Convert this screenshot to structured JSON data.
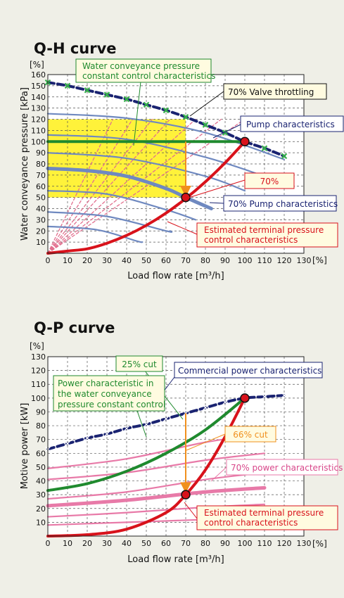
{
  "colors": {
    "background": "#efefe7",
    "plot_background": "#ffffff",
    "yellow_zone": "#fff23a",
    "grid": "#555555",
    "green": "#1f8a2e",
    "red": "#d8121b",
    "navy": "#1a2371",
    "blue_gray": "#6f89c0",
    "pink": "#e87aa8",
    "pink_dashed": "#e2708f",
    "orange": "#f0901e",
    "marker_green": "#35b04a",
    "label_fill": "#fffbe0"
  },
  "chart_data": [
    {
      "type": "line",
      "title": "Q-H curve",
      "unit_label": "[%]",
      "x_unit_label": "[%]",
      "xlabel": "Load flow rate [m³/h]",
      "ylabel": "Water conveyance pressure [kPa]",
      "xlim": [
        0,
        130
      ],
      "ylim": [
        0,
        160
      ],
      "x_ticks": [
        "0",
        "10",
        "20",
        "30",
        "40",
        "50",
        "60",
        "70",
        "80",
        "90",
        "100",
        "110",
        "120",
        "130"
      ],
      "y_ticks": [
        "10",
        "20",
        "30",
        "40",
        "50",
        "60",
        "70",
        "80",
        "90",
        "100",
        "110",
        "120",
        "130",
        "140",
        "150",
        "160"
      ],
      "grid": true,
      "highlight_region": {
        "x": [
          0,
          70
        ],
        "y": [
          50,
          120
        ]
      },
      "series": [
        {
          "name": "Pump characteristics",
          "style": "navy-dashed",
          "points": [
            [
              0,
              153
            ],
            [
              10,
              150
            ],
            [
              20,
              146
            ],
            [
              30,
              142
            ],
            [
              40,
              138
            ],
            [
              50,
              133
            ],
            [
              60,
              128
            ],
            [
              70,
              122
            ],
            [
              80,
              115
            ],
            [
              90,
              108
            ],
            [
              100,
              100
            ],
            [
              110,
              94
            ],
            [
              120,
              87
            ]
          ]
        },
        {
          "name": "Estimated terminal pressure control characteristics",
          "style": "red",
          "points": [
            [
              0,
              0
            ],
            [
              10,
              2
            ],
            [
              20,
              4
            ],
            [
              30,
              9
            ],
            [
              40,
              16
            ],
            [
              50,
              25
            ],
            [
              60,
              36
            ],
            [
              70,
              49
            ],
            [
              80,
              64
            ],
            [
              90,
              81
            ],
            [
              100,
              100
            ]
          ]
        },
        {
          "name": "Water conveyance pressure constant control characteristics",
          "style": "green",
          "points": [
            [
              0,
              100
            ],
            [
              100,
              100
            ]
          ]
        },
        {
          "name": "70% Pump characteristics",
          "style": "blue-thick",
          "points": [
            [
              0,
              76
            ],
            [
              20,
              74
            ],
            [
              40,
              69
            ],
            [
              60,
              58
            ],
            [
              70,
              50
            ],
            [
              83,
              40
            ]
          ]
        },
        {
          "style": "blue",
          "points": [
            [
              0,
              125
            ],
            [
              40,
              121
            ],
            [
              80,
              108
            ],
            [
              120,
              84
            ]
          ]
        },
        {
          "style": "blue",
          "points": [
            [
              0,
              106
            ],
            [
              40,
              102
            ],
            [
              80,
              86
            ],
            [
              110,
              69
            ]
          ]
        },
        {
          "style": "blue",
          "points": [
            [
              0,
              90
            ],
            [
              40,
              85
            ],
            [
              80,
              69
            ],
            [
              100,
              56
            ]
          ]
        },
        {
          "style": "blue",
          "points": [
            [
              0,
              56
            ],
            [
              30,
              53
            ],
            [
              60,
              39
            ],
            [
              75,
              30
            ]
          ]
        },
        {
          "style": "blue",
          "points": [
            [
              0,
              37
            ],
            [
              30,
              33
            ],
            [
              60,
              20
            ],
            [
              62,
              20
            ]
          ]
        },
        {
          "style": "blue",
          "points": [
            [
              0,
              24
            ],
            [
              25,
              21
            ],
            [
              45,
              11
            ],
            [
              48,
              10
            ]
          ]
        },
        {
          "style": "pink-dashed",
          "points": [
            [
              0,
              0
            ],
            [
              33,
              120
            ]
          ]
        },
        {
          "style": "pink-dashed",
          "points": [
            [
              0,
              0
            ],
            [
              43,
              120
            ]
          ]
        },
        {
          "style": "pink-dashed",
          "points": [
            [
              0,
              0
            ],
            [
              53,
              120
            ]
          ]
        },
        {
          "style": "pink-dashed",
          "points": [
            [
              0,
              0
            ],
            [
              62,
              120
            ]
          ]
        },
        {
          "style": "pink-dashed",
          "points": [
            [
              0,
              0
            ],
            [
              75,
              120
            ]
          ]
        },
        {
          "style": "pink-dashed",
          "points": [
            [
              0,
              0
            ],
            [
              88,
              120
            ]
          ]
        },
        {
          "style": "pink-dashed",
          "points": [
            [
              0,
              0
            ],
            [
              100,
              120
            ]
          ]
        }
      ],
      "arrow": {
        "from": [
          70,
          100
        ],
        "to": [
          70,
          53
        ]
      },
      "markers": [
        {
          "label": "",
          "point": [
            100,
            100
          ]
        },
        {
          "label": "",
          "point": [
            70,
            50
          ]
        }
      ],
      "annotations": [
        {
          "text": [
            "Water conveyance pressure",
            "constant control characteristics"
          ],
          "color": "green",
          "anchor": [
            47,
            100
          ]
        },
        {
          "text": [
            "70% Valve throttling"
          ],
          "color": "black",
          "anchor": [
            70,
            122
          ]
        },
        {
          "text": [
            "Pump characteristics"
          ],
          "color": "navy",
          "anchor": [
            100,
            100
          ]
        },
        {
          "text": [
            "70%"
          ],
          "color": "red",
          "anchor": [
            70,
            50
          ]
        },
        {
          "text": [
            "70% Pump characteristics"
          ],
          "color": "navy",
          "anchor": [
            83,
            40
          ]
        },
        {
          "text": [
            "Estimated terminal pressure",
            "control characteristics"
          ],
          "color": "red",
          "anchor": [
            63,
            34
          ]
        }
      ]
    },
    {
      "type": "line",
      "title": "Q-P curve",
      "unit_label": "[%]",
      "x_unit_label": "[%]",
      "xlabel": "Load flow rate [m³/h]",
      "ylabel": "Motive power [kW]",
      "xlim": [
        0,
        130
      ],
      "ylim": [
        0,
        130
      ],
      "x_ticks": [
        "0",
        "10",
        "20",
        "30",
        "40",
        "50",
        "60",
        "70",
        "80",
        "90",
        "100",
        "110",
        "120",
        "130"
      ],
      "y_ticks": [
        "10",
        "20",
        "30",
        "40",
        "50",
        "60",
        "70",
        "80",
        "90",
        "100",
        "110",
        "120",
        "130"
      ],
      "grid": true,
      "series": [
        {
          "name": "Commercial power characteristics",
          "style": "navy-dashed",
          "points": [
            [
              0,
              63
            ],
            [
              10,
              67
            ],
            [
              20,
              71
            ],
            [
              30,
              74
            ],
            [
              40,
              78
            ],
            [
              50,
              81
            ],
            [
              60,
              85
            ],
            [
              70,
              89
            ],
            [
              80,
              93
            ],
            [
              90,
              97
            ],
            [
              100,
              100
            ],
            [
              110,
              101
            ],
            [
              120,
              102
            ]
          ]
        },
        {
          "name": "Estimated terminal pressure control characteristics",
          "style": "red",
          "points": [
            [
              0,
              0
            ],
            [
              20,
              1
            ],
            [
              40,
              5
            ],
            [
              60,
              17
            ],
            [
              70,
              30
            ],
            [
              80,
              48
            ],
            [
              90,
              72
            ],
            [
              100,
              100
            ]
          ]
        },
        {
          "name": "Power characteristic in the water conveyance pressure constant control",
          "style": "green",
          "points": [
            [
              0,
              33
            ],
            [
              20,
              38
            ],
            [
              40,
              47
            ],
            [
              60,
              60
            ],
            [
              80,
              77
            ],
            [
              100,
              100
            ]
          ]
        },
        {
          "name": "70% power characteristics",
          "style": "pink-thick",
          "points": [
            [
              0,
              22
            ],
            [
              40,
              26
            ],
            [
              80,
              32
            ],
            [
              110,
              35
            ]
          ]
        },
        {
          "style": "pink",
          "points": [
            [
              0,
              49
            ],
            [
              40,
              56
            ],
            [
              80,
              68
            ],
            [
              110,
              74
            ]
          ]
        },
        {
          "style": "pink",
          "points": [
            [
              0,
              41
            ],
            [
              40,
              46
            ],
            [
              80,
              55
            ],
            [
              110,
              60
            ]
          ]
        },
        {
          "style": "pink",
          "points": [
            [
              0,
              27
            ],
            [
              40,
              32
            ],
            [
              80,
              41
            ],
            [
              110,
              46
            ]
          ]
        },
        {
          "style": "pink",
          "points": [
            [
              0,
              14
            ],
            [
              40,
              17
            ],
            [
              80,
              21
            ],
            [
              110,
              23
            ]
          ]
        },
        {
          "style": "pink",
          "points": [
            [
              0,
              8
            ],
            [
              40,
              10
            ],
            [
              80,
              12
            ],
            [
              110,
              14
            ]
          ]
        }
      ],
      "arrow": {
        "from": [
          70,
          89
        ],
        "to": [
          70,
          33
        ]
      },
      "markers": [
        {
          "label": "",
          "point": [
            100,
            100
          ]
        },
        {
          "label": "",
          "point": [
            70,
            30
          ]
        }
      ],
      "annotations": [
        {
          "text": [
            "25% cut"
          ],
          "color": "green",
          "anchor": [
            70,
            82
          ]
        },
        {
          "text": [
            "Commercial power characteristics"
          ],
          "color": "navy",
          "anchor": [
            70,
            89
          ]
        },
        {
          "text": [
            "Power characteristic in",
            "the water conveyance",
            "pressure constant control"
          ],
          "color": "green",
          "anchor": [
            52,
            55
          ]
        },
        {
          "text": [
            "66% cut"
          ],
          "color": "orange",
          "anchor": [
            70,
            62
          ]
        },
        {
          "text": [
            "70% power characteristics"
          ],
          "color": "pink",
          "anchor": [
            90,
            34
          ]
        },
        {
          "text": [
            "Estimated terminal pressure",
            "control characteristics"
          ],
          "color": "red",
          "anchor": [
            70,
            30
          ]
        }
      ]
    }
  ]
}
